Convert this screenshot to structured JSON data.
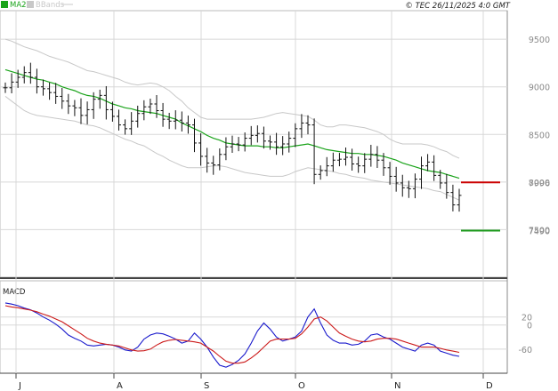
{
  "header": {
    "legend_ma": "MA20",
    "legend_bb": "BBands",
    "copyright": "© TEC 26/11/2025 4:0 GMT"
  },
  "colors": {
    "ma": "#1aa31a",
    "bbands": "#c8c8c8",
    "candles": "#111111",
    "resistance": "#cc0000",
    "support": "#1a991a",
    "macd": "#1a1acc",
    "signal": "#cc1a1a",
    "grid": "#d8d8d8"
  },
  "panels": {
    "macd_label": "MACD"
  },
  "chart_data": [
    {
      "type": "candlestick",
      "title": "",
      "ylim": [
        7000,
        9800
      ],
      "y_ticks": [
        "9500",
        "9000",
        "8500",
        "8000",
        "7500"
      ],
      "x_month_labels": [
        "J",
        "A",
        "S",
        "O",
        "N",
        "D"
      ],
      "close": [
        8990,
        9050,
        9100,
        9150,
        9100,
        9000,
        8980,
        8940,
        8900,
        8850,
        8800,
        8780,
        8700,
        8760,
        8870,
        8910,
        8760,
        8690,
        8600,
        8560,
        8640,
        8720,
        8790,
        8820,
        8750,
        8660,
        8640,
        8650,
        8620,
        8600,
        8410,
        8270,
        8200,
        8180,
        8290,
        8370,
        8400,
        8390,
        8460,
        8490,
        8510,
        8430,
        8420,
        8370,
        8400,
        8460,
        8560,
        8620,
        8600,
        8080,
        8120,
        8170,
        8230,
        8240,
        8260,
        8190,
        8170,
        8240,
        8290,
        8230,
        8150,
        8060,
        7990,
        7940,
        7930,
        8030,
        8170,
        8210,
        8070,
        7990,
        7890,
        7760,
        7860
      ],
      "ma20": [
        9180,
        9160,
        9140,
        9120,
        9100,
        9080,
        9070,
        9050,
        9030,
        9000,
        8980,
        8960,
        8930,
        8910,
        8900,
        8880,
        8850,
        8820,
        8800,
        8780,
        8770,
        8750,
        8740,
        8730,
        8720,
        8700,
        8680,
        8660,
        8620,
        8590,
        8560,
        8530,
        8490,
        8460,
        8440,
        8410,
        8400,
        8390,
        8380,
        8380,
        8380,
        8370,
        8370,
        8360,
        8360,
        8370,
        8380,
        8390,
        8400,
        8380,
        8360,
        8340,
        8330,
        8320,
        8310,
        8300,
        8300,
        8290,
        8290,
        8280,
        8270,
        8250,
        8230,
        8200,
        8180,
        8160,
        8140,
        8120,
        8110,
        8100,
        8080,
        8060,
        8040
      ],
      "bb_upper": [
        9500,
        9480,
        9450,
        9420,
        9400,
        9380,
        9350,
        9320,
        9300,
        9280,
        9260,
        9230,
        9200,
        9170,
        9160,
        9140,
        9120,
        9100,
        9080,
        9050,
        9030,
        9020,
        9030,
        9040,
        9030,
        9000,
        8960,
        8900,
        8850,
        8780,
        8730,
        8680,
        8660,
        8660,
        8660,
        8660,
        8660,
        8660,
        8660,
        8660,
        8670,
        8680,
        8700,
        8720,
        8730,
        8720,
        8710,
        8700,
        8690,
        8650,
        8600,
        8580,
        8580,
        8600,
        8600,
        8590,
        8580,
        8570,
        8550,
        8530,
        8500,
        8450,
        8420,
        8400,
        8400,
        8400,
        8400,
        8390,
        8370,
        8340,
        8320,
        8280,
        8250
      ],
      "bb_lower": [
        8900,
        8850,
        8800,
        8750,
        8720,
        8700,
        8690,
        8680,
        8670,
        8660,
        8650,
        8640,
        8620,
        8600,
        8590,
        8570,
        8540,
        8510,
        8480,
        8450,
        8430,
        8400,
        8380,
        8340,
        8300,
        8270,
        8230,
        8200,
        8170,
        8150,
        8150,
        8150,
        8160,
        8170,
        8170,
        8160,
        8140,
        8120,
        8100,
        8090,
        8080,
        8070,
        8060,
        8060,
        8060,
        8080,
        8110,
        8130,
        8150,
        8140,
        8130,
        8120,
        8110,
        8090,
        8080,
        8060,
        8050,
        8040,
        8020,
        8010,
        8000,
        7990,
        7980,
        7970,
        7960,
        7950,
        7940,
        7930,
        7910,
        7900,
        7870,
        7840,
        7810
      ],
      "annotations": [
        {
          "label": "7996",
          "value": 7996,
          "kind": "resistance"
        },
        {
          "label": "7490",
          "value": 7490,
          "kind": "support"
        }
      ]
    },
    {
      "type": "line",
      "title": "MACD",
      "ylim": [
        -120,
        110
      ],
      "y_ticks": [
        "20",
        "0",
        "-60"
      ],
      "y_tick_values": [
        20,
        0,
        -60
      ],
      "series": [
        {
          "values": [
            55,
            52,
            48,
            42,
            38,
            30,
            20,
            12,
            2,
            -10,
            -25,
            -33,
            -40,
            -50,
            -52,
            -50,
            -48,
            -50,
            -55,
            -62,
            -65,
            -55,
            -35,
            -25,
            -20,
            -22,
            -28,
            -35,
            -45,
            -40,
            -20,
            -35,
            -55,
            -80,
            -100,
            -105,
            -98,
            -88,
            -72,
            -45,
            -15,
            5,
            -10,
            -30,
            -40,
            -35,
            -30,
            -15,
            20,
            40,
            5,
            -25,
            -38,
            -45,
            -45,
            -50,
            -48,
            -40,
            -25,
            -22,
            -30,
            -35,
            -45,
            -55,
            -60,
            -65,
            -50,
            -45,
            -50,
            -65,
            -70,
            -75,
            -78
          ]
        },
        {
          "values": [
            48,
            45,
            43,
            40,
            37,
            33,
            27,
            22,
            15,
            8,
            -2,
            -12,
            -22,
            -33,
            -40,
            -45,
            -48,
            -50,
            -52,
            -57,
            -62,
            -65,
            -64,
            -60,
            -50,
            -42,
            -38,
            -36,
            -38,
            -40,
            -42,
            -45,
            -55,
            -65,
            -78,
            -90,
            -95,
            -95,
            -92,
            -82,
            -70,
            -55,
            -40,
            -35,
            -35,
            -35,
            -33,
            -22,
            -5,
            15,
            20,
            10,
            -5,
            -20,
            -28,
            -35,
            -40,
            -42,
            -40,
            -35,
            -33,
            -33,
            -35,
            -40,
            -45,
            -50,
            -55,
            -55,
            -55,
            -58,
            -62,
            -65,
            -68
          ]
        }
      ]
    }
  ]
}
